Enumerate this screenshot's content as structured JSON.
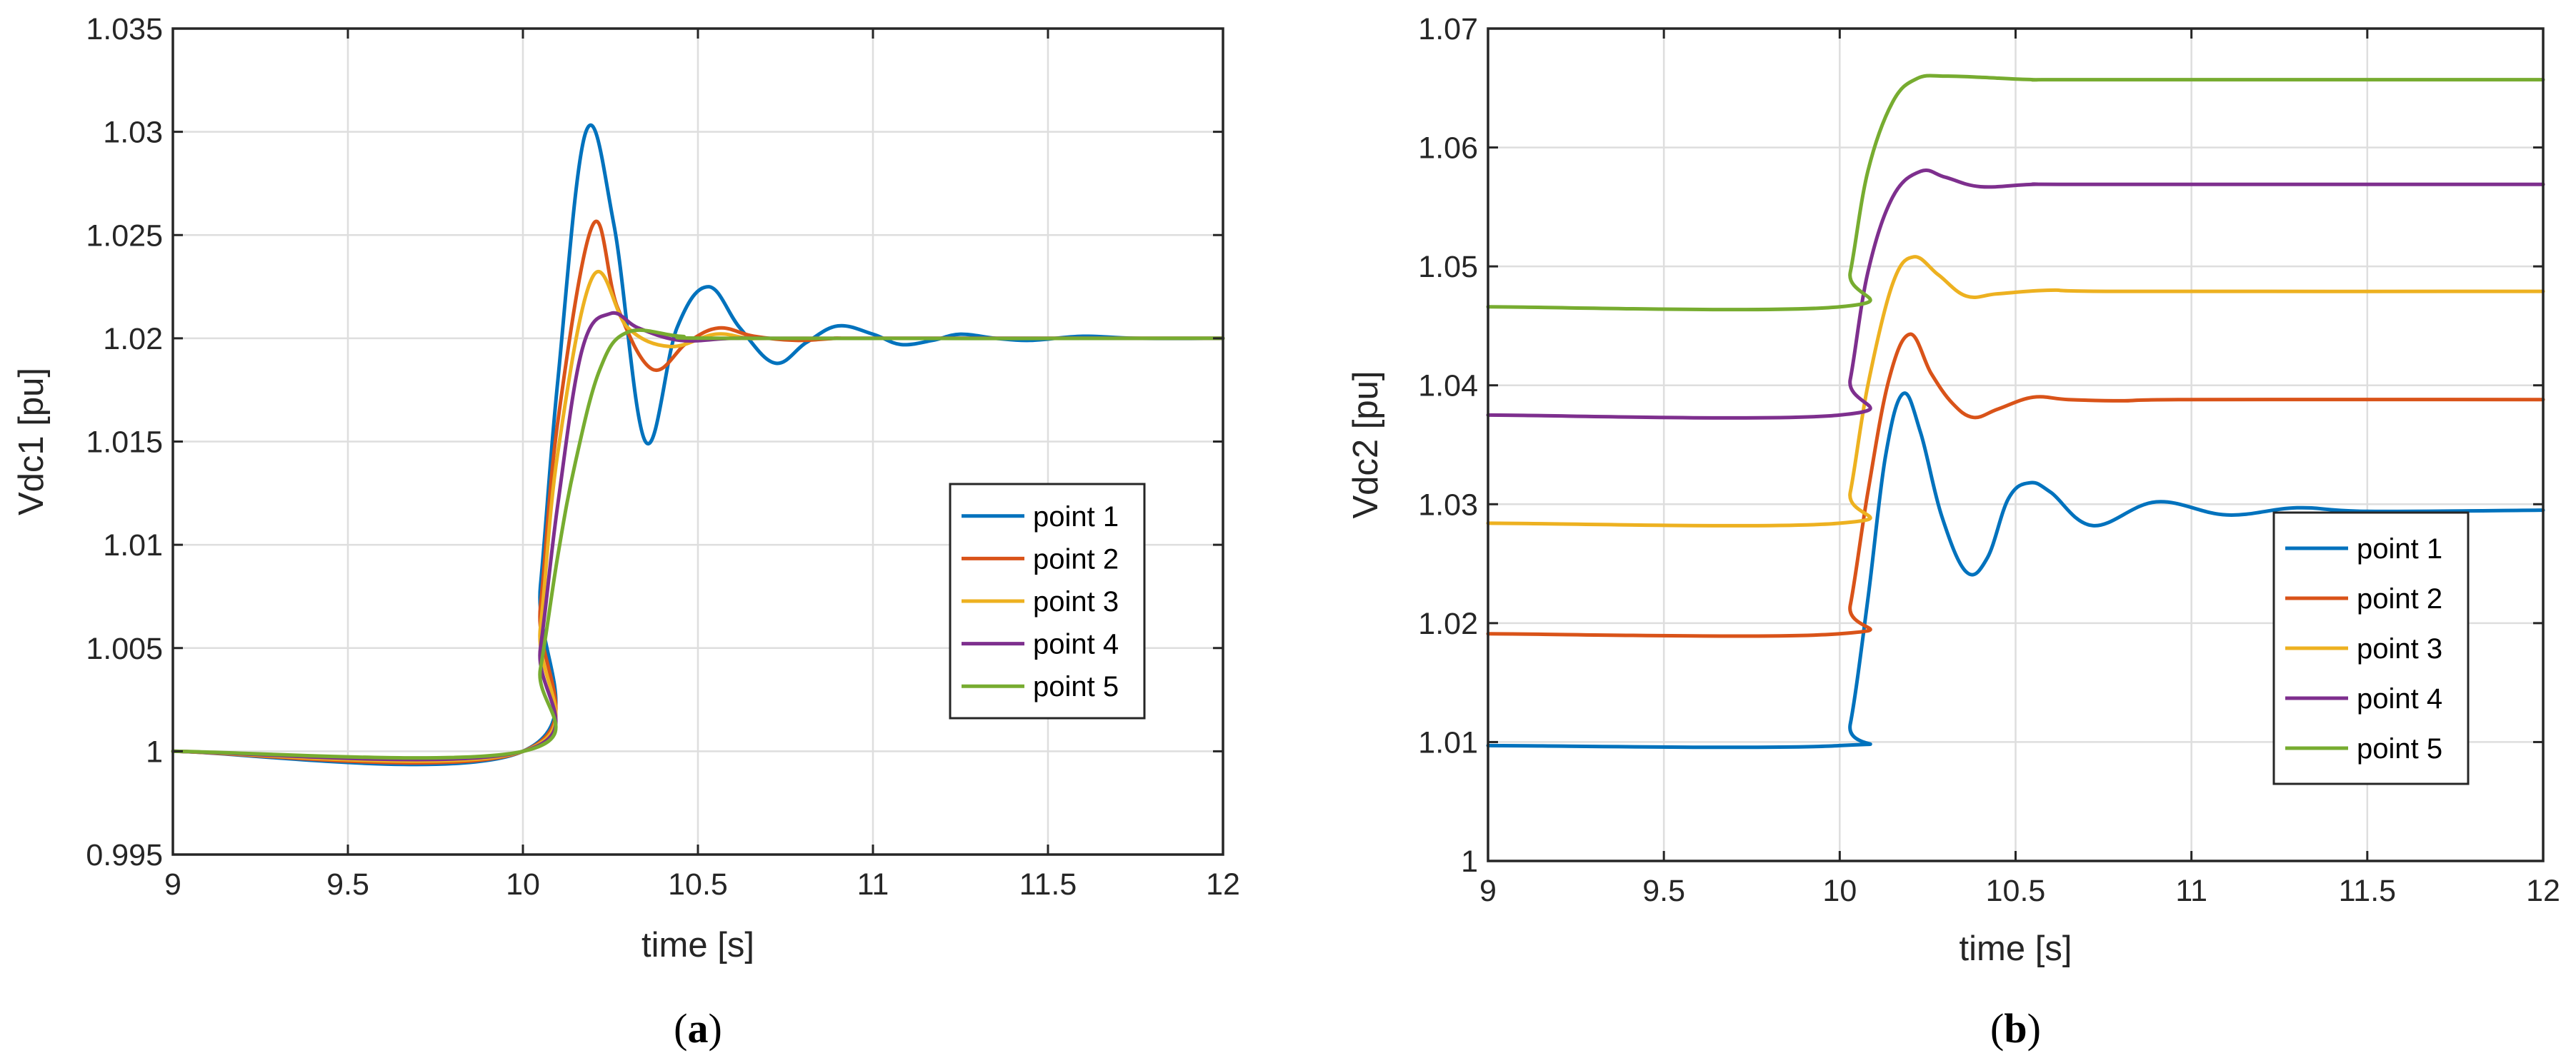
{
  "colors": {
    "point 1": "#0072BD",
    "point 2": "#D95319",
    "point 3": "#EDB120",
    "point 4": "#7E2F8E",
    "point 5": "#77AC30",
    "grid": "#dedede",
    "axis": "#262626"
  },
  "chart_data": [
    {
      "type": "line",
      "panel_label": "a",
      "xlabel": "time [s]",
      "ylabel": "Vdc1 [pu]",
      "xlim": [
        9,
        12
      ],
      "ylim": [
        0.995,
        1.035
      ],
      "xticks": [
        9,
        9.5,
        10,
        10.5,
        11,
        11.5,
        12
      ],
      "yticks": [
        0.995,
        1,
        1.005,
        1.01,
        1.015,
        1.02,
        1.025,
        1.03,
        1.035
      ],
      "xtick_labels": [
        "9",
        "9.5",
        "10",
        "10.5",
        "11",
        "11.5",
        "12"
      ],
      "ytick_labels": [
        "0.995",
        "1",
        "1.005",
        "1.01",
        "1.015",
        "1.02",
        "1.025",
        "1.03",
        "1.035"
      ],
      "grid": true,
      "legend_position": "right",
      "legend": [
        "point 1",
        "point 2",
        "point 3",
        "point 4",
        "point 5"
      ],
      "series": [
        {
          "name": "point 1",
          "x": [
            9,
            10,
            10.05,
            10.1,
            10.18,
            10.26,
            10.35,
            10.44,
            10.53,
            10.62,
            10.72,
            10.81,
            10.9,
            11,
            11.08,
            11.17,
            11.25,
            11.35,
            11.45,
            11.6,
            11.75,
            12
          ],
          "y": [
            1.0,
            1.0,
            1.008,
            1.018,
            1.03,
            1.0255,
            1.015,
            1.0205,
            1.0225,
            1.0205,
            1.0188,
            1.0198,
            1.0206,
            1.0202,
            1.0197,
            1.0199,
            1.0202,
            1.02,
            1.0199,
            1.0201,
            1.02,
            1.02
          ]
        },
        {
          "name": "point 2",
          "x": [
            9,
            10,
            10.05,
            10.1,
            10.2,
            10.27,
            10.37,
            10.47,
            10.56,
            10.66,
            10.78,
            10.9,
            11,
            12
          ],
          "y": [
            1.0,
            1.0,
            1.007,
            1.016,
            1.0255,
            1.0215,
            1.0185,
            1.0198,
            1.0205,
            1.0201,
            1.0199,
            1.02,
            1.02,
            1.02
          ]
        },
        {
          "name": "point 3",
          "x": [
            9,
            10,
            10.05,
            10.1,
            10.2,
            10.3,
            10.42,
            10.55,
            10.65,
            10.8,
            12
          ],
          "y": [
            1.0,
            1.0,
            1.006,
            1.0145,
            1.023,
            1.0205,
            1.0196,
            1.0202,
            1.02,
            1.02,
            1.02
          ]
        },
        {
          "name": "point 4",
          "x": [
            9,
            10,
            10.05,
            10.1,
            10.17,
            10.25,
            10.33,
            10.45,
            10.6,
            10.8,
            12
          ],
          "y": [
            1.0,
            1.0,
            1.005,
            1.012,
            1.0195,
            1.0212,
            1.0205,
            1.0199,
            1.02,
            1.02,
            1.02
          ]
        },
        {
          "name": "point 5",
          "x": [
            9,
            10,
            10.05,
            10.1,
            10.15,
            10.22,
            10.3,
            10.45,
            10.6,
            12
          ],
          "y": [
            1.0,
            1.0,
            1.004,
            1.0095,
            1.014,
            1.0185,
            1.0203,
            1.0201,
            1.02,
            1.02
          ]
        }
      ]
    },
    {
      "type": "line",
      "panel_label": "b",
      "xlabel": "time [s]",
      "ylabel": "Vdc2 [pu]",
      "xlim": [
        9,
        12
      ],
      "ylim": [
        1,
        1.07
      ],
      "xticks": [
        9,
        9.5,
        10,
        10.5,
        11,
        11.5,
        12
      ],
      "yticks": [
        1,
        1.01,
        1.02,
        1.03,
        1.04,
        1.05,
        1.06,
        1.07
      ],
      "xtick_labels": [
        "9",
        "9.5",
        "10",
        "10.5",
        "11",
        "11.5",
        "12"
      ],
      "ytick_labels": [
        "1",
        "1.01",
        "1.02",
        "1.03",
        "1.04",
        "1.05",
        "1.06",
        "1.07"
      ],
      "grid": true,
      "legend_position": "right",
      "legend": [
        "point 1",
        "point 2",
        "point 3",
        "point 4",
        "point 5"
      ],
      "series": [
        {
          "name": "point 1",
          "x": [
            9,
            10,
            10.03,
            10.08,
            10.13,
            10.18,
            10.23,
            10.29,
            10.36,
            10.42,
            10.48,
            10.54,
            10.6,
            10.72,
            10.9,
            11.1,
            11.3,
            11.5,
            12
          ],
          "y": [
            1.0097,
            1.0097,
            1.0115,
            1.022,
            1.034,
            1.0393,
            1.036,
            1.029,
            1.0243,
            1.0255,
            1.0305,
            1.0318,
            1.031,
            1.0282,
            1.0302,
            1.0291,
            1.0297,
            1.0294,
            1.0295
          ]
        },
        {
          "name": "point 2",
          "x": [
            9,
            10,
            10.03,
            10.08,
            10.14,
            10.2,
            10.26,
            10.32,
            10.38,
            10.45,
            10.55,
            10.65,
            10.8,
            11,
            12
          ],
          "y": [
            1.0191,
            1.0191,
            1.0215,
            1.031,
            1.0405,
            1.0443,
            1.041,
            1.0385,
            1.0373,
            1.038,
            1.039,
            1.0388,
            1.0387,
            1.0388,
            1.0388
          ]
        },
        {
          "name": "point 3",
          "x": [
            9,
            10,
            10.03,
            10.08,
            10.15,
            10.21,
            10.28,
            10.36,
            10.45,
            10.6,
            10.8,
            12
          ],
          "y": [
            1.0284,
            1.0284,
            1.031,
            1.04,
            1.0485,
            1.0508,
            1.0493,
            1.0475,
            1.0477,
            1.048,
            1.0479,
            1.0479
          ]
        },
        {
          "name": "point 4",
          "x": [
            9,
            10,
            10.03,
            10.08,
            10.15,
            10.23,
            10.3,
            10.4,
            10.55,
            10.7,
            12
          ],
          "y": [
            1.0375,
            1.0375,
            1.0405,
            1.0495,
            1.0558,
            1.058,
            1.0575,
            1.0567,
            1.0569,
            1.0569,
            1.0569
          ]
        },
        {
          "name": "point 5",
          "x": [
            9,
            10,
            10.03,
            10.08,
            10.15,
            10.22,
            10.3,
            10.4,
            10.55,
            10.7,
            12
          ],
          "y": [
            1.0466,
            1.0466,
            1.0495,
            1.058,
            1.0638,
            1.0658,
            1.066,
            1.0659,
            1.0657,
            1.0657,
            1.0657
          ]
        }
      ]
    }
  ]
}
